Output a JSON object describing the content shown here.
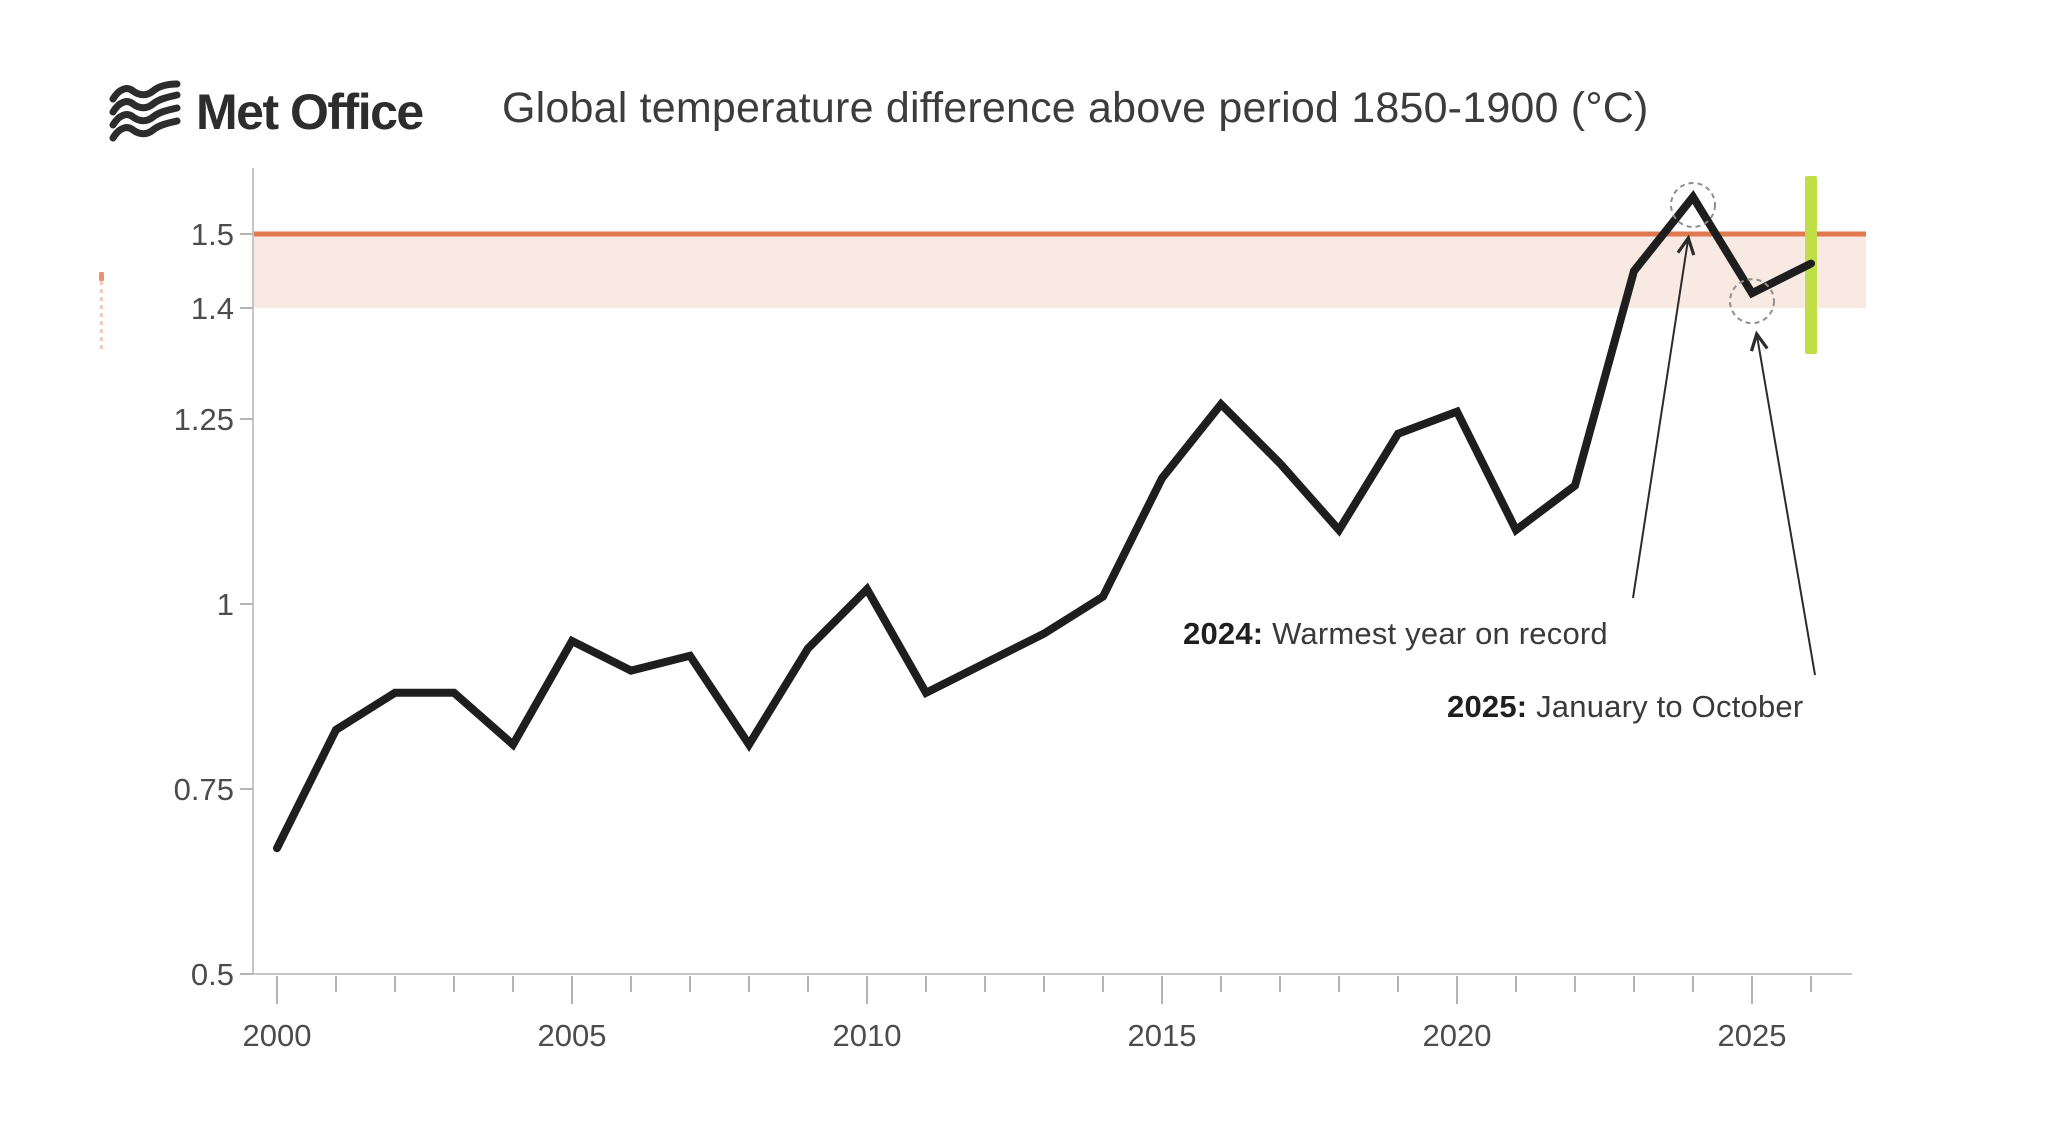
{
  "header": {
    "logo_text": "Met Office",
    "title": "Global temperature difference above period 1850-1900 (°C)"
  },
  "colors": {
    "line": "#1e1e1e",
    "threshold_line": "#e0794f",
    "threshold_band": "#f8e9e2",
    "marker_bar": "#c0df46",
    "axis": "#c6c6c6",
    "tick": "#b4b4b4",
    "tick_label": "#4c4c4c",
    "annotation_arrow": "#2b2b2b",
    "highlight_circle": "#8f8f8f",
    "logo": "#2d2d2d",
    "title_text": "#3c3c3c"
  },
  "annotations": [
    {
      "bold": "2024:",
      "text": " Warmest year on record"
    },
    {
      "bold": "2025:",
      "text": " January to October"
    }
  ],
  "chart_data": {
    "type": "line",
    "title": "Global temperature difference above period 1850-1900 (°C)",
    "ylabel": "",
    "xlabel": "",
    "ylim": [
      0.5,
      1.6
    ],
    "xlim": [
      2000,
      2026.7
    ],
    "grid": false,
    "legend": "none",
    "yticks": [
      {
        "value": 0.5,
        "label": "0.5"
      },
      {
        "value": 0.75,
        "label": "0.75"
      },
      {
        "value": 1.0,
        "label": "1"
      },
      {
        "value": 1.25,
        "label": "1.25"
      },
      {
        "value": 1.4,
        "label": "1.4"
      },
      {
        "value": 1.5,
        "label": "1.5"
      }
    ],
    "xticks_minor_every_year": [
      2000,
      2026
    ],
    "xticks_major": [
      {
        "value": 2000,
        "label": "2000"
      },
      {
        "value": 2005,
        "label": "2005"
      },
      {
        "value": 2010,
        "label": "2010"
      },
      {
        "value": 2015,
        "label": "2015"
      },
      {
        "value": 2020,
        "label": "2020"
      },
      {
        "value": 2025,
        "label": "2025"
      }
    ],
    "threshold_band": {
      "from": 1.4,
      "to": 1.5
    },
    "threshold_line": 1.5,
    "series_name": "Global temperature difference (°C) above 1850-1900",
    "points": [
      {
        "year": 2000,
        "value": 0.67
      },
      {
        "year": 2001,
        "value": 0.83
      },
      {
        "year": 2002,
        "value": 0.88
      },
      {
        "year": 2003,
        "value": 0.88
      },
      {
        "year": 2004,
        "value": 0.81
      },
      {
        "year": 2005,
        "value": 0.95
      },
      {
        "year": 2006,
        "value": 0.91
      },
      {
        "year": 2007,
        "value": 0.93
      },
      {
        "year": 2008,
        "value": 0.81
      },
      {
        "year": 2009,
        "value": 0.94
      },
      {
        "year": 2010,
        "value": 1.02
      },
      {
        "year": 2011,
        "value": 0.88
      },
      {
        "year": 2012,
        "value": 0.92
      },
      {
        "year": 2013,
        "value": 0.96
      },
      {
        "year": 2014,
        "value": 1.01
      },
      {
        "year": 2015,
        "value": 1.17
      },
      {
        "year": 2016,
        "value": 1.27
      },
      {
        "year": 2017,
        "value": 1.19
      },
      {
        "year": 2018,
        "value": 1.1
      },
      {
        "year": 2019,
        "value": 1.23
      },
      {
        "year": 2020,
        "value": 1.26
      },
      {
        "year": 2021,
        "value": 1.1
      },
      {
        "year": 2022,
        "value": 1.16
      },
      {
        "year": 2023,
        "value": 1.45
      },
      {
        "year": 2024,
        "value": 1.55
      },
      {
        "year": 2025,
        "value": 1.42
      },
      {
        "year": 2026,
        "value": 1.46
      }
    ],
    "highlight_points": [
      {
        "year": 2024,
        "value": 1.55,
        "note": "2024: Warmest year on record"
      },
      {
        "year": 2025,
        "value": 1.42,
        "note": "2025: January to October"
      }
    ],
    "end_marker": "lime vertical bar at right edge of line (over threshold band)"
  }
}
